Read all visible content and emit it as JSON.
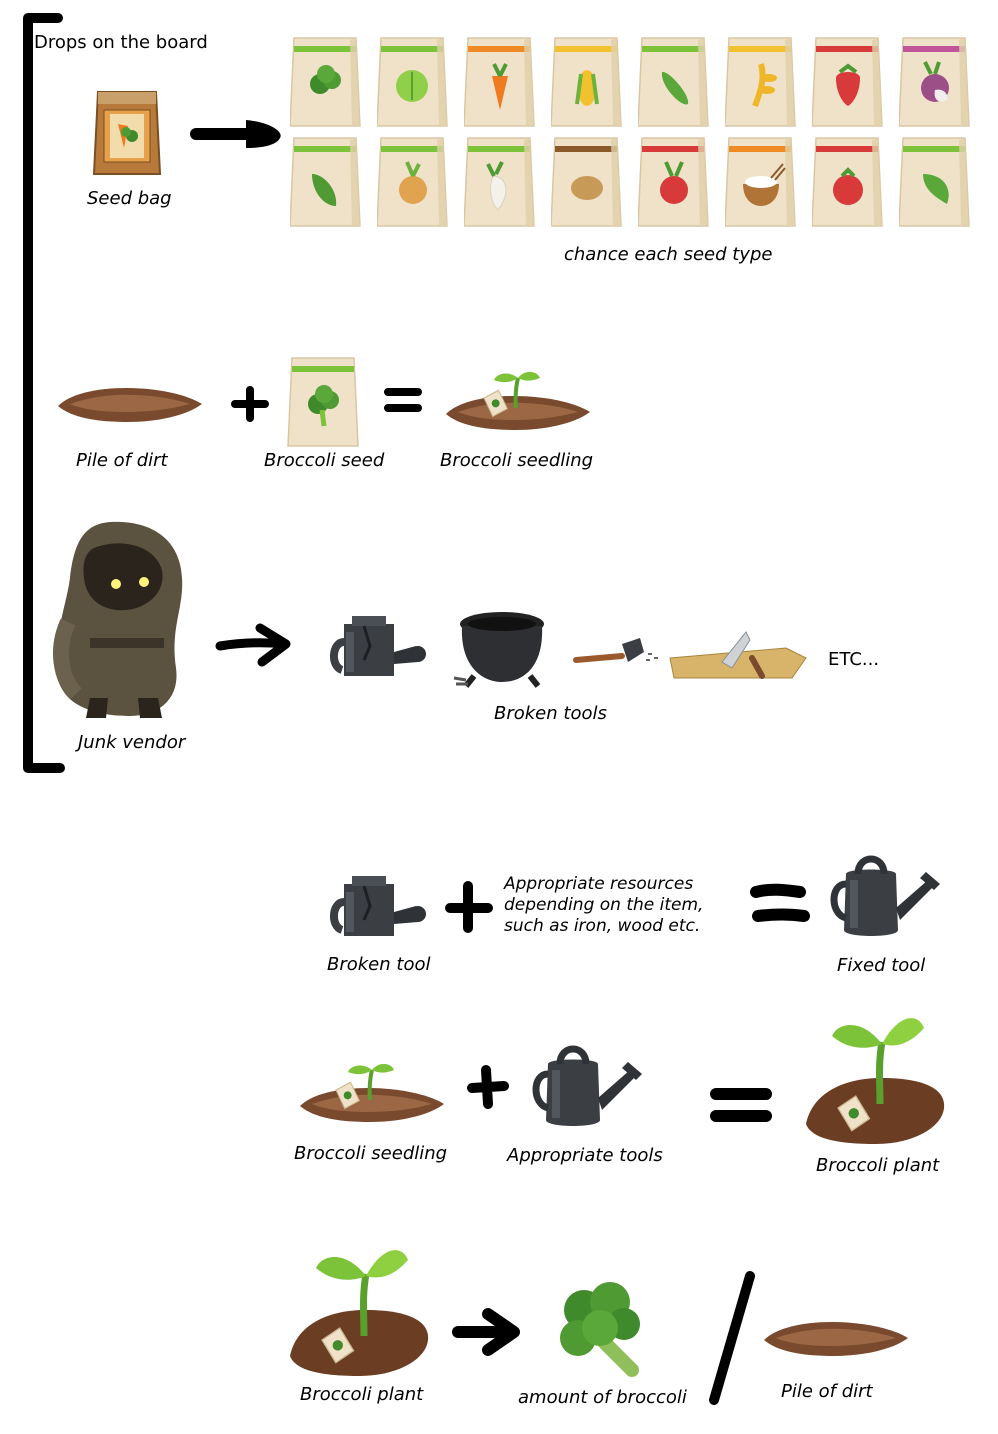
{
  "header": {
    "title": "Drops on the board"
  },
  "row_seeds": {
    "seed_bag_label": "Seed bag",
    "caption": "chance each seed type",
    "seed_packets": [
      {
        "icon": "broccoli-icon",
        "stripe": "#7cc33a"
      },
      {
        "icon": "cabbage-icon",
        "stripe": "#7cc33a"
      },
      {
        "icon": "carrot-icon",
        "stripe": "#f08a24"
      },
      {
        "icon": "corn-icon",
        "stripe": "#f2c12e"
      },
      {
        "icon": "cucumber-icon",
        "stripe": "#7cc33a"
      },
      {
        "icon": "wheat-icon",
        "stripe": "#f2c12e"
      },
      {
        "icon": "strawberry-icon",
        "stripe": "#d83a3a"
      },
      {
        "icon": "turnip-icon",
        "stripe": "#c0559a"
      },
      {
        "icon": "lettuce-icon",
        "stripe": "#7cc33a"
      },
      {
        "icon": "onion-icon",
        "stripe": "#7cc33a"
      },
      {
        "icon": "radish-white-icon",
        "stripe": "#7cc33a"
      },
      {
        "icon": "potato-icon",
        "stripe": "#8a5a2b"
      },
      {
        "icon": "radish-red-icon",
        "stripe": "#d83a3a"
      },
      {
        "icon": "rice-icon",
        "stripe": "#f08a24"
      },
      {
        "icon": "tomato-icon",
        "stripe": "#d83a3a"
      },
      {
        "icon": "pepper-icon",
        "stripe": "#7cc33a"
      }
    ]
  },
  "row_seedling": {
    "dirt_label": "Pile of dirt",
    "seed_label": "Broccoli seed",
    "result_label": "Broccoli seedling"
  },
  "row_vendor": {
    "vendor_label": "Junk vendor",
    "tools_label": "Broken tools",
    "etc_label": "ETC..."
  },
  "row_fix": {
    "broken_label": "Broken tool",
    "resources_line1": "Appropriate resources",
    "resources_line2": "depending on the item,",
    "resources_line3": "such as iron, wood etc.",
    "fixed_label": "Fixed tool"
  },
  "row_grow": {
    "seedling_label": "Broccoli seedling",
    "tools_label": "Appropriate tools",
    "plant_label": "Broccoli plant"
  },
  "row_harvest": {
    "plant_label": "Broccoli plant",
    "broccoli_label": "amount of broccoli",
    "dirt_label": "Pile of dirt"
  },
  "colors": {
    "packet_paper": "#efe2c8",
    "dirt": "#7a4a2e",
    "stroke": "#000000"
  }
}
